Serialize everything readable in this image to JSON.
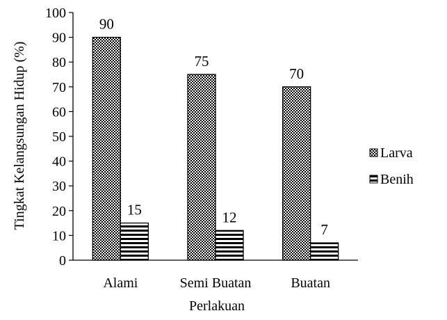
{
  "chart_data": {
    "type": "bar",
    "title": "",
    "xlabel": "Perlakuan",
    "ylabel": "Tingkat Kelangsungan Hidup (%)",
    "ylim": [
      0,
      100
    ],
    "yticks": [
      0,
      10,
      20,
      30,
      40,
      50,
      60,
      70,
      80,
      90,
      100
    ],
    "categories": [
      "Alami",
      "Semi Buatan",
      "Buatan"
    ],
    "series": [
      {
        "name": "Larva",
        "values": [
          90,
          75,
          70
        ],
        "pattern": "checker"
      },
      {
        "name": "Benih",
        "values": [
          15,
          12,
          7
        ],
        "pattern": "horizontal-lines"
      }
    ],
    "data_labels": true,
    "grid": false,
    "legend": "right",
    "colors": {
      "ink": "#000000",
      "background": "#ffffff"
    }
  }
}
